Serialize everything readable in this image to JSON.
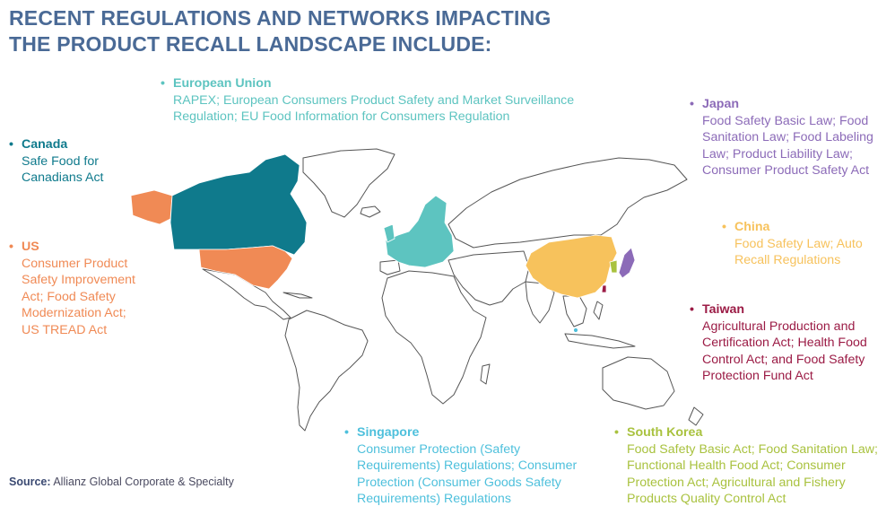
{
  "title": {
    "line1": "RECENT REGULATIONS AND NETWORKS IMPACTING",
    "line2": "THE PRODUCT RECALL LANDSCAPE INCLUDE:"
  },
  "regions": {
    "eu": {
      "name": "European Union",
      "lines": [
        "RAPEX; European Consumers Product Safety and Market Surveillance",
        "Regulation; EU Food Information for Consumers Regulation"
      ],
      "color": "#5dc4c0"
    },
    "canada": {
      "name": "Canada",
      "lines": [
        "Safe Food for",
        "Canadians Act"
      ],
      "color": "#0f7a8c"
    },
    "us": {
      "name": "US",
      "lines": [
        "Consumer Product",
        "Safety Improvement",
        "Act; Food Safety",
        "Modernization Act;",
        "US TREAD Act"
      ],
      "color": "#f08a55"
    },
    "japan": {
      "name": "Japan",
      "lines": [
        "Food Safety Basic Law; Food",
        "Sanitation Law; Food Labeling",
        "Law; Product Liability Law;",
        "Consumer Product Safety Act"
      ],
      "color": "#8c6bb8"
    },
    "china": {
      "name": "China",
      "lines": [
        "Food Safety Law; Auto",
        "Recall Regulations"
      ],
      "color": "#f7c25c"
    },
    "taiwan": {
      "name": "Taiwan",
      "lines": [
        "Agricultural Production and",
        "Certification Act; Health Food",
        "Control Act; and Food Safety",
        "Protection Fund Act"
      ],
      "color": "#9b1b45"
    },
    "singapore": {
      "name": "Singapore",
      "lines": [
        "Consumer Protection (Safety",
        "Requirements) Regulations; Consumer",
        "Protection (Consumer Goods Safety",
        "Requirements) Regulations"
      ],
      "color": "#4ec0dc"
    },
    "south_korea": {
      "name": "South Korea",
      "lines": [
        "Food Safety Basic Act; Food Sanitation Law;",
        "Functional Health Food Act; Consumer",
        "Protection Act; Agricultural and Fishery",
        "Products Quality Control Act"
      ],
      "color": "#a9c23f"
    }
  },
  "source": {
    "label": "Source:",
    "text": "Allianz Global Corporate & Specialty"
  },
  "colors": {
    "title": "#4a6a96",
    "map_outline": "#555555",
    "map_fill": "#ffffff"
  },
  "icons": {
    "bullet": "•"
  }
}
